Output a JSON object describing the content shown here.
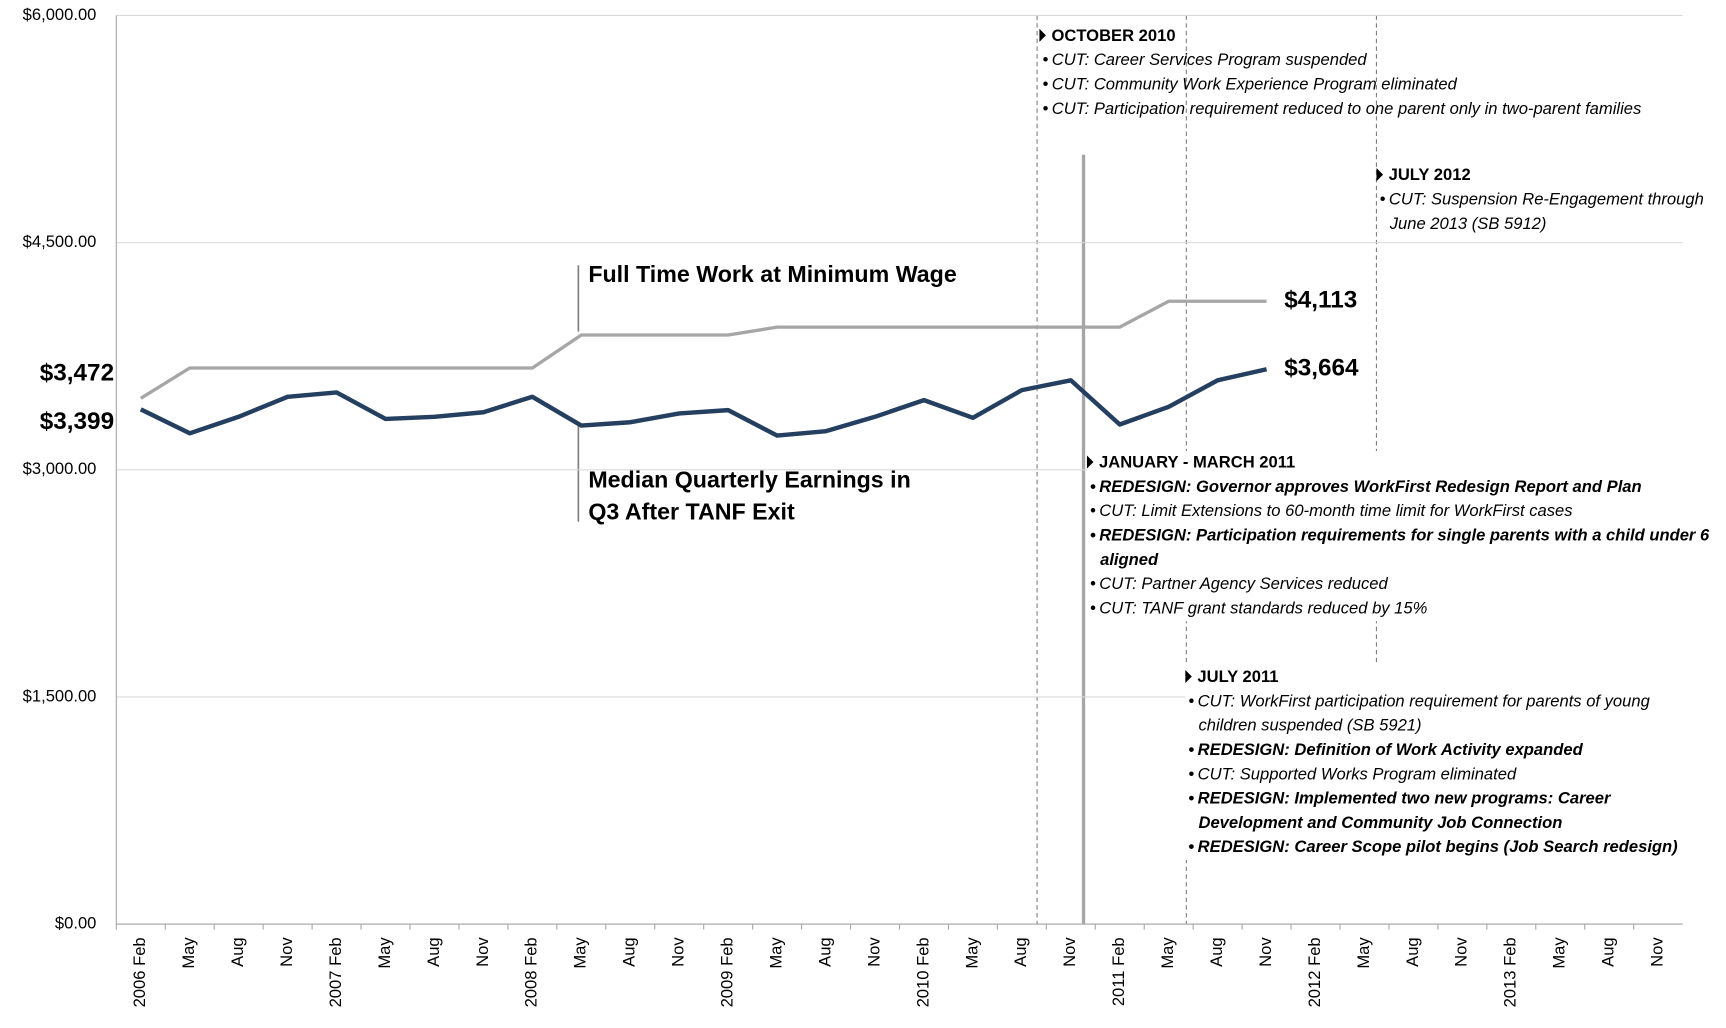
{
  "chart_data": {
    "type": "line",
    "categories": [
      "2006 Feb",
      "May",
      "Aug",
      "Nov",
      "2007 Feb",
      "May",
      "Aug",
      "Nov",
      "2008 Feb",
      "May",
      "Aug",
      "Nov",
      "2009 Feb",
      "May",
      "Aug",
      "Nov",
      "2010 Feb",
      "May",
      "Aug",
      "Nov",
      "2011 Feb",
      "May",
      "Aug",
      "Nov",
      "2012 Feb",
      "May",
      "Aug",
      "Nov",
      "2013 Feb",
      "May",
      "Aug",
      "Nov"
    ],
    "series": [
      {
        "name": "Full Time Work at Minimum Wage",
        "color": "#a6a6a6",
        "values": [
          3472,
          3672,
          3672,
          3672,
          3672,
          3672,
          3672,
          3672,
          3672,
          3890,
          3890,
          3890,
          3890,
          3942,
          3942,
          3942,
          3942,
          3942,
          3942,
          3942,
          3942,
          4113,
          4113,
          4113,
          null,
          null,
          null,
          null,
          null,
          null,
          null,
          null
        ],
        "value_labels": [
          "$3,472",
          null,
          null,
          null,
          null,
          null,
          null,
          null,
          null,
          null,
          null,
          null,
          null,
          null,
          null,
          null,
          null,
          null,
          null,
          null,
          null,
          null,
          null,
          "$4,113",
          null,
          null,
          null,
          null,
          null,
          null,
          null,
          null
        ]
      },
      {
        "name": "Median Quarterly Earnings in Q3 After TANF Exit",
        "color": "#243f60",
        "values": [
          3399,
          3241,
          3350,
          3482,
          3511,
          3336,
          3350,
          3380,
          3482,
          3292,
          3314,
          3372,
          3394,
          3226,
          3255,
          3350,
          3460,
          3343,
          3526,
          3591,
          3299,
          3416,
          3591,
          3664,
          null,
          null,
          null,
          null,
          null,
          null,
          null,
          null
        ],
        "value_labels": [
          "$3,399",
          null,
          null,
          null,
          null,
          null,
          null,
          null,
          null,
          null,
          null,
          null,
          null,
          null,
          null,
          null,
          null,
          null,
          null,
          null,
          null,
          null,
          null,
          "$3,664",
          null,
          null,
          null,
          null,
          null,
          null,
          null,
          null
        ]
      }
    ],
    "ylim": [
      0,
      6000
    ],
    "yticks": [
      {
        "value": 0,
        "label": "$0.00"
      },
      {
        "value": 1500,
        "label": "$1,500.00"
      },
      {
        "value": 3000,
        "label": "$3,000.00"
      },
      {
        "value": 4500,
        "label": "$4,500.00"
      },
      {
        "value": 6000,
        "label": "$6,000.00"
      }
    ],
    "grid": true,
    "annotations": [
      {
        "title": "OCTOBER 2010",
        "items": [
          {
            "text": "CUT: Career Services Program suspended",
            "bold": false
          },
          {
            "text": "CUT: Community Work Experience Program eliminated",
            "bold": false
          },
          {
            "text": "CUT: Participation requirement reduced to one parent only in two-parent families",
            "bold": false
          }
        ]
      },
      {
        "title": "JULY 2012",
        "items": [
          {
            "text": "CUT: Suspension Re-Engagement through June 2013 (SB 5912)",
            "bold": false
          }
        ]
      },
      {
        "title": "JANUARY - MARCH 2011",
        "items": [
          {
            "text": "REDESIGN: Governor approves WorkFirst Redesign Report and Plan",
            "bold": true
          },
          {
            "text": "CUT: Limit Extensions to 60-month time limit for WorkFirst cases",
            "bold": false
          },
          {
            "text": "REDESIGN: Participation requirements for single parents with a child under 6 aligned",
            "bold": true
          },
          {
            "text": "CUT: Partner Agency Services reduced",
            "bold": false
          },
          {
            "text": "CUT: TANF grant standards reduced by 15%",
            "bold": false
          }
        ]
      },
      {
        "title": "JULY 2011",
        "items": [
          {
            "text": "CUT: WorkFirst participation requirement for parents of young children suspended (SB 5921)",
            "bold": false
          },
          {
            "text": "REDESIGN: Definition of Work Activity expanded",
            "bold": true
          },
          {
            "text": "CUT: Supported Works Program eliminated",
            "bold": false
          },
          {
            "text": "REDESIGN: Implemented two new programs: Career Development and Community Job Connection",
            "bold": true
          },
          {
            "text": "REDESIGN: Career Scope pilot begins (Job Search redesign)",
            "bold": true
          }
        ]
      }
    ]
  }
}
